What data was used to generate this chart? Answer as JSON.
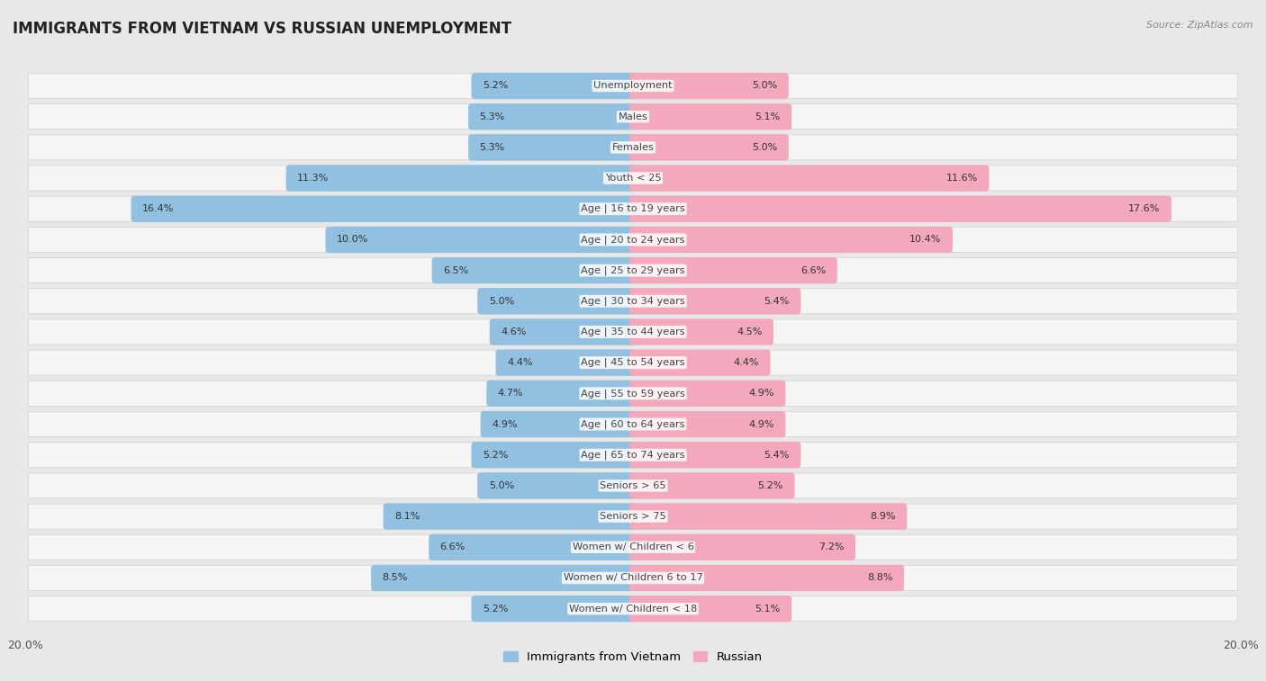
{
  "title": "IMMIGRANTS FROM VIETNAM VS RUSSIAN UNEMPLOYMENT",
  "source": "Source: ZipAtlas.com",
  "categories": [
    "Unemployment",
    "Males",
    "Females",
    "Youth < 25",
    "Age | 16 to 19 years",
    "Age | 20 to 24 years",
    "Age | 25 to 29 years",
    "Age | 30 to 34 years",
    "Age | 35 to 44 years",
    "Age | 45 to 54 years",
    "Age | 55 to 59 years",
    "Age | 60 to 64 years",
    "Age | 65 to 74 years",
    "Seniors > 65",
    "Seniors > 75",
    "Women w/ Children < 6",
    "Women w/ Children 6 to 17",
    "Women w/ Children < 18"
  ],
  "vietnam_values": [
    5.2,
    5.3,
    5.3,
    11.3,
    16.4,
    10.0,
    6.5,
    5.0,
    4.6,
    4.4,
    4.7,
    4.9,
    5.2,
    5.0,
    8.1,
    6.6,
    8.5,
    5.2
  ],
  "russian_values": [
    5.0,
    5.1,
    5.0,
    11.6,
    17.6,
    10.4,
    6.6,
    5.4,
    4.5,
    4.4,
    4.9,
    4.9,
    5.4,
    5.2,
    8.9,
    7.2,
    8.8,
    5.1
  ],
  "vietnam_color": "#92c0e0",
  "russian_color": "#f4a8bc",
  "vietnam_color_strong": "#6aaed6",
  "russian_color_strong": "#f07090",
  "background_color": "#e8e8e8",
  "bar_row_color": "#f5f5f5",
  "xlim": 20.0,
  "label_fontsize": 8.2,
  "title_fontsize": 12,
  "legend_fontsize": 9.5,
  "value_fontsize": 8.0
}
